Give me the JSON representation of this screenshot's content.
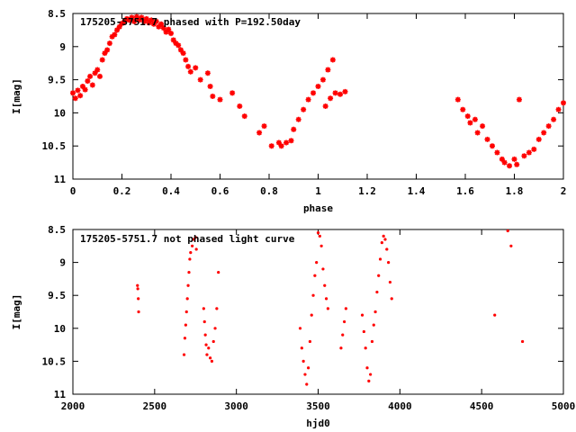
{
  "chart_data": [
    {
      "type": "scatter",
      "title": "175205-5751.7 phased with P=192.50day",
      "xlabel": "phase",
      "ylabel": "I[mag]",
      "xlim": [
        0,
        2
      ],
      "ylim": [
        11,
        8.5
      ],
      "y_inverted": true,
      "grid": false,
      "x_ticks": [
        "0",
        "0.2",
        "0.4",
        "0.6",
        "0.8",
        "1",
        "1.2",
        "1.4",
        "1.6",
        "1.8",
        "2"
      ],
      "y_ticks": [
        "8.5",
        "9",
        "9.5",
        "10",
        "10.5",
        "11"
      ],
      "marker_color": "#ff0000",
      "marker": "star",
      "series": [
        {
          "points": [
            [
              0.0,
              9.7
            ],
            [
              0.01,
              9.78
            ],
            [
              0.02,
              9.66
            ],
            [
              0.03,
              9.74
            ],
            [
              0.04,
              9.6
            ],
            [
              0.05,
              9.65
            ],
            [
              0.06,
              9.52
            ],
            [
              0.07,
              9.45
            ],
            [
              0.08,
              9.58
            ],
            [
              0.09,
              9.4
            ],
            [
              0.1,
              9.35
            ],
            [
              0.11,
              9.45
            ],
            [
              0.12,
              9.2
            ],
            [
              0.13,
              9.1
            ],
            [
              0.14,
              9.05
            ],
            [
              0.15,
              8.95
            ],
            [
              0.16,
              8.85
            ],
            [
              0.17,
              8.82
            ],
            [
              0.18,
              8.75
            ],
            [
              0.19,
              8.7
            ],
            [
              0.2,
              8.65
            ],
            [
              0.21,
              8.62
            ],
            [
              0.22,
              8.58
            ],
            [
              0.23,
              8.6
            ],
            [
              0.24,
              8.56
            ],
            [
              0.25,
              8.62
            ],
            [
              0.26,
              8.55
            ],
            [
              0.27,
              8.6
            ],
            [
              0.28,
              8.56
            ],
            [
              0.29,
              8.62
            ],
            [
              0.3,
              8.58
            ],
            [
              0.31,
              8.64
            ],
            [
              0.32,
              8.6
            ],
            [
              0.33,
              8.66
            ],
            [
              0.34,
              8.62
            ],
            [
              0.35,
              8.7
            ],
            [
              0.36,
              8.66
            ],
            [
              0.37,
              8.72
            ],
            [
              0.38,
              8.78
            ],
            [
              0.39,
              8.74
            ],
            [
              0.4,
              8.8
            ],
            [
              0.41,
              8.9
            ],
            [
              0.42,
              8.95
            ],
            [
              0.43,
              8.98
            ],
            [
              0.44,
              9.05
            ],
            [
              0.45,
              9.1
            ],
            [
              0.46,
              9.2
            ],
            [
              0.47,
              9.3
            ],
            [
              0.48,
              9.38
            ],
            [
              0.5,
              9.32
            ],
            [
              0.52,
              9.5
            ],
            [
              0.55,
              9.4
            ],
            [
              0.56,
              9.6
            ],
            [
              0.57,
              9.75
            ],
            [
              0.6,
              9.8
            ],
            [
              0.65,
              9.7
            ],
            [
              0.68,
              9.9
            ],
            [
              0.7,
              10.05
            ],
            [
              0.76,
              10.3
            ],
            [
              0.78,
              10.2
            ],
            [
              0.81,
              10.5
            ],
            [
              0.84,
              10.45
            ],
            [
              0.85,
              10.5
            ],
            [
              0.87,
              10.45
            ],
            [
              0.89,
              10.42
            ],
            [
              0.9,
              10.25
            ],
            [
              0.92,
              10.1
            ],
            [
              0.94,
              9.95
            ],
            [
              0.96,
              9.8
            ],
            [
              0.98,
              9.7
            ],
            [
              1.0,
              9.6
            ],
            [
              1.02,
              9.5
            ],
            [
              1.04,
              9.35
            ],
            [
              1.06,
              9.2
            ],
            [
              1.03,
              9.9
            ],
            [
              1.05,
              9.78
            ],
            [
              1.07,
              9.7
            ],
            [
              1.09,
              9.72
            ],
            [
              1.11,
              9.68
            ],
            [
              1.57,
              9.8
            ],
            [
              1.59,
              9.95
            ],
            [
              1.61,
              10.05
            ],
            [
              1.62,
              10.15
            ],
            [
              1.64,
              10.1
            ],
            [
              1.65,
              10.3
            ],
            [
              1.67,
              10.2
            ],
            [
              1.69,
              10.4
            ],
            [
              1.71,
              10.5
            ],
            [
              1.73,
              10.6
            ],
            [
              1.75,
              10.7
            ],
            [
              1.76,
              10.75
            ],
            [
              1.78,
              10.8
            ],
            [
              1.8,
              10.7
            ],
            [
              1.81,
              10.78
            ],
            [
              1.82,
              9.8
            ],
            [
              1.84,
              10.65
            ],
            [
              1.86,
              10.6
            ],
            [
              1.88,
              10.55
            ],
            [
              1.9,
              10.4
            ],
            [
              1.92,
              10.3
            ],
            [
              1.94,
              10.2
            ],
            [
              1.96,
              10.1
            ],
            [
              1.98,
              9.95
            ],
            [
              2.0,
              9.85
            ]
          ]
        }
      ]
    },
    {
      "type": "scatter",
      "title": "175205-5751.7 not phased light curve",
      "xlabel": "hjd0",
      "ylabel": "I[mag]",
      "xlim": [
        2000,
        5000
      ],
      "ylim": [
        11,
        8.5
      ],
      "y_inverted": true,
      "grid": false,
      "x_ticks": [
        "2000",
        "2500",
        "3000",
        "3500",
        "4000",
        "4500",
        "5000"
      ],
      "y_ticks": [
        "8.5",
        "9",
        "9.5",
        "10",
        "10.5",
        "11"
      ],
      "marker_color": "#ff0000",
      "marker": "dot",
      "series": [
        {
          "points": [
            [
              2395,
              9.35
            ],
            [
              2397,
              9.4
            ],
            [
              2400,
              9.55
            ],
            [
              2402,
              9.75
            ],
            [
              2680,
              10.4
            ],
            [
              2685,
              10.15
            ],
            [
              2690,
              9.95
            ],
            [
              2695,
              9.75
            ],
            [
              2700,
              9.55
            ],
            [
              2705,
              9.35
            ],
            [
              2710,
              9.15
            ],
            [
              2715,
              8.95
            ],
            [
              2720,
              8.85
            ],
            [
              2730,
              8.75
            ],
            [
              2740,
              8.65
            ],
            [
              2750,
              8.62
            ],
            [
              2755,
              8.8
            ],
            [
              2800,
              9.7
            ],
            [
              2805,
              9.9
            ],
            [
              2810,
              10.1
            ],
            [
              2815,
              10.25
            ],
            [
              2820,
              10.4
            ],
            [
              2830,
              10.3
            ],
            [
              2840,
              10.45
            ],
            [
              2850,
              10.5
            ],
            [
              2860,
              10.2
            ],
            [
              2870,
              10.0
            ],
            [
              2880,
              9.7
            ],
            [
              2890,
              9.15
            ],
            [
              3390,
              10.0
            ],
            [
              3400,
              10.3
            ],
            [
              3410,
              10.5
            ],
            [
              3420,
              10.7
            ],
            [
              3430,
              10.85
            ],
            [
              3440,
              10.6
            ],
            [
              3450,
              10.2
            ],
            [
              3460,
              9.8
            ],
            [
              3470,
              9.5
            ],
            [
              3480,
              9.2
            ],
            [
              3490,
              9.0
            ],
            [
              3500,
              8.55
            ],
            [
              3510,
              8.6
            ],
            [
              3520,
              8.75
            ],
            [
              3530,
              9.1
            ],
            [
              3540,
              9.35
            ],
            [
              3550,
              9.55
            ],
            [
              3560,
              9.7
            ],
            [
              3640,
              10.3
            ],
            [
              3650,
              10.1
            ],
            [
              3660,
              9.9
            ],
            [
              3670,
              9.7
            ],
            [
              3770,
              9.8
            ],
            [
              3780,
              10.05
            ],
            [
              3790,
              10.3
            ],
            [
              3800,
              10.6
            ],
            [
              3810,
              10.8
            ],
            [
              3820,
              10.7
            ],
            [
              3830,
              10.2
            ],
            [
              3840,
              9.95
            ],
            [
              3850,
              9.75
            ],
            [
              3860,
              9.45
            ],
            [
              3870,
              9.2
            ],
            [
              3880,
              8.95
            ],
            [
              3890,
              8.7
            ],
            [
              3900,
              8.6
            ],
            [
              3910,
              8.65
            ],
            [
              3920,
              8.8
            ],
            [
              3930,
              9.0
            ],
            [
              3940,
              9.3
            ],
            [
              3950,
              9.55
            ],
            [
              4580,
              9.8
            ],
            [
              4660,
              8.52
            ],
            [
              4680,
              8.75
            ],
            [
              4750,
              10.2
            ]
          ]
        }
      ]
    }
  ]
}
